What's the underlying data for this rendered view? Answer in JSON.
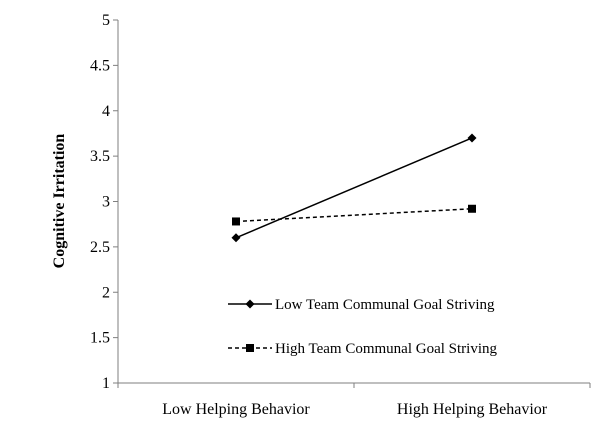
{
  "chart_data": {
    "type": "line",
    "title": "",
    "xlabel": "",
    "ylabel": "Cognitive Irritation",
    "ylim": [
      1,
      5
    ],
    "yticks": [
      1,
      1.5,
      2,
      2.5,
      3,
      3.5,
      4,
      4.5,
      5
    ],
    "grid": false,
    "legend_position": "inside-lower-right",
    "categories": [
      "Low Helping Behavior",
      "High Helping Behavior"
    ],
    "series": [
      {
        "name": "Low Team Communal Goal Striving",
        "values": [
          2.6,
          3.7
        ],
        "marker": "diamond",
        "line_style": "solid",
        "color": "#000000"
      },
      {
        "name": "High Team Communal Goal Striving",
        "values": [
          2.78,
          2.92
        ],
        "marker": "square",
        "line_style": "dashed",
        "color": "#000000"
      }
    ]
  }
}
